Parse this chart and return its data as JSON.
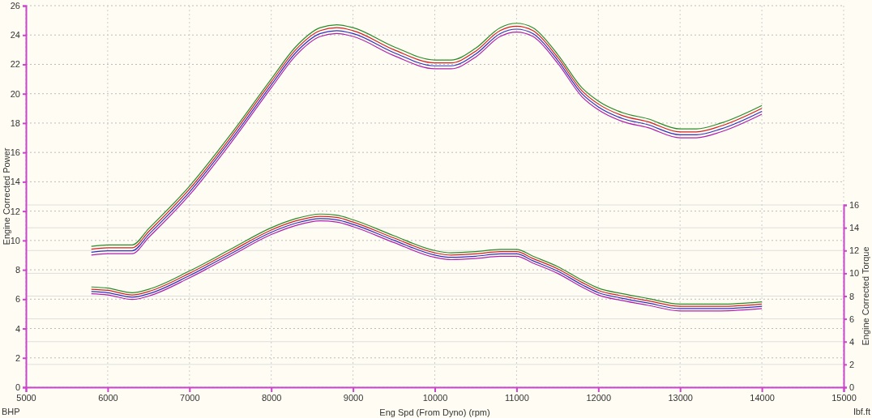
{
  "chart_data": {
    "type": "line",
    "xlabel": "Eng Spd (From Dyno) (rpm)",
    "ylabel": "Engine Corrected Power",
    "y2label": "Engine Corrected Torque",
    "annotations": [
      "BHP",
      "lbf.ft"
    ],
    "x": [
      5800,
      6000,
      6300,
      6500,
      7000,
      7500,
      8000,
      8300,
      8600,
      8800,
      9000,
      9500,
      10000,
      10200,
      10500,
      10800,
      11000,
      11200,
      11500,
      11800,
      12000,
      12300,
      12600,
      13000,
      13200,
      13500,
      14000
    ],
    "series": [
      {
        "color": "#d42020",
        "values": [
          9.4,
          9.5,
          9.5,
          10.6,
          13.5,
          17.0,
          20.8,
          23.0,
          24.3,
          24.5,
          24.3,
          23.0,
          22.1,
          22.1,
          22.9,
          24.3,
          24.6,
          24.3,
          22.5,
          20.2,
          19.3,
          18.5,
          18.1,
          17.4,
          17.4,
          17.8,
          19.0
        ]
      },
      {
        "color": "#2a8a2a",
        "values": [
          9.6,
          9.7,
          9.7,
          10.8,
          13.7,
          17.2,
          21.0,
          23.2,
          24.5,
          24.7,
          24.5,
          23.2,
          22.3,
          22.3,
          23.1,
          24.5,
          24.8,
          24.5,
          22.7,
          20.4,
          19.5,
          18.7,
          18.3,
          17.6,
          17.6,
          18.0,
          19.2
        ]
      },
      {
        "color": "#3030c0",
        "values": [
          9.2,
          9.3,
          9.3,
          10.4,
          13.3,
          16.8,
          20.6,
          22.8,
          24.1,
          24.3,
          24.1,
          22.8,
          21.9,
          21.9,
          22.7,
          24.1,
          24.4,
          24.1,
          22.3,
          20.0,
          19.1,
          18.3,
          17.9,
          17.2,
          17.2,
          17.6,
          18.8
        ]
      },
      {
        "color": "#b020b0",
        "values": [
          9.0,
          9.1,
          9.1,
          10.2,
          13.1,
          16.6,
          20.4,
          22.6,
          23.9,
          24.1,
          23.9,
          22.6,
          21.7,
          21.7,
          22.5,
          23.9,
          24.2,
          23.9,
          22.1,
          19.8,
          18.9,
          18.1,
          17.7,
          17.0,
          17.0,
          17.4,
          18.6
        ]
      },
      {
        "color": "#d42020",
        "axis": "y2",
        "values": [
          8.6,
          8.5,
          8.1,
          8.4,
          10.0,
          11.9,
          13.8,
          14.6,
          15.0,
          14.9,
          14.5,
          13.1,
          11.8,
          11.6,
          11.7,
          11.9,
          11.9,
          11.3,
          10.4,
          9.2,
          8.5,
          8.0,
          7.6,
          7.1,
          7.1,
          7.1,
          7.3
        ]
      },
      {
        "color": "#2a8a2a",
        "axis": "y2",
        "values": [
          8.8,
          8.7,
          8.3,
          8.6,
          10.2,
          12.1,
          14.0,
          14.8,
          15.2,
          15.1,
          14.7,
          13.3,
          12.0,
          11.8,
          11.9,
          12.1,
          12.1,
          11.5,
          10.6,
          9.4,
          8.7,
          8.2,
          7.8,
          7.3,
          7.3,
          7.3,
          7.5
        ]
      },
      {
        "color": "#3030c0",
        "axis": "y2",
        "values": [
          8.4,
          8.3,
          7.9,
          8.2,
          9.8,
          11.7,
          13.6,
          14.4,
          14.8,
          14.7,
          14.3,
          12.9,
          11.6,
          11.4,
          11.5,
          11.7,
          11.7,
          11.1,
          10.2,
          9.0,
          8.3,
          7.8,
          7.4,
          6.9,
          6.9,
          6.9,
          7.1
        ]
      },
      {
        "color": "#b020b0",
        "axis": "y2",
        "values": [
          8.2,
          8.1,
          7.7,
          8.0,
          9.6,
          11.5,
          13.4,
          14.2,
          14.6,
          14.5,
          14.1,
          12.7,
          11.4,
          11.2,
          11.3,
          11.5,
          11.5,
          10.9,
          10.0,
          8.8,
          8.1,
          7.6,
          7.2,
          6.7,
          6.7,
          6.7,
          6.9
        ]
      }
    ],
    "xlim": [
      5000,
      15000
    ],
    "xticks": [
      5000,
      6000,
      7000,
      8000,
      9000,
      10000,
      11000,
      12000,
      13000,
      14000,
      15000
    ],
    "ylim": [
      0,
      26
    ],
    "yticks": [
      0,
      2,
      4,
      6,
      8,
      10,
      12,
      14,
      16,
      18,
      20,
      22,
      24,
      26
    ],
    "y2lim": [
      0,
      16
    ],
    "y2ticks": [
      0,
      2,
      4,
      6,
      8,
      10,
      12,
      14,
      16
    ],
    "grid": true,
    "marker": "none",
    "line_style": "solid"
  }
}
